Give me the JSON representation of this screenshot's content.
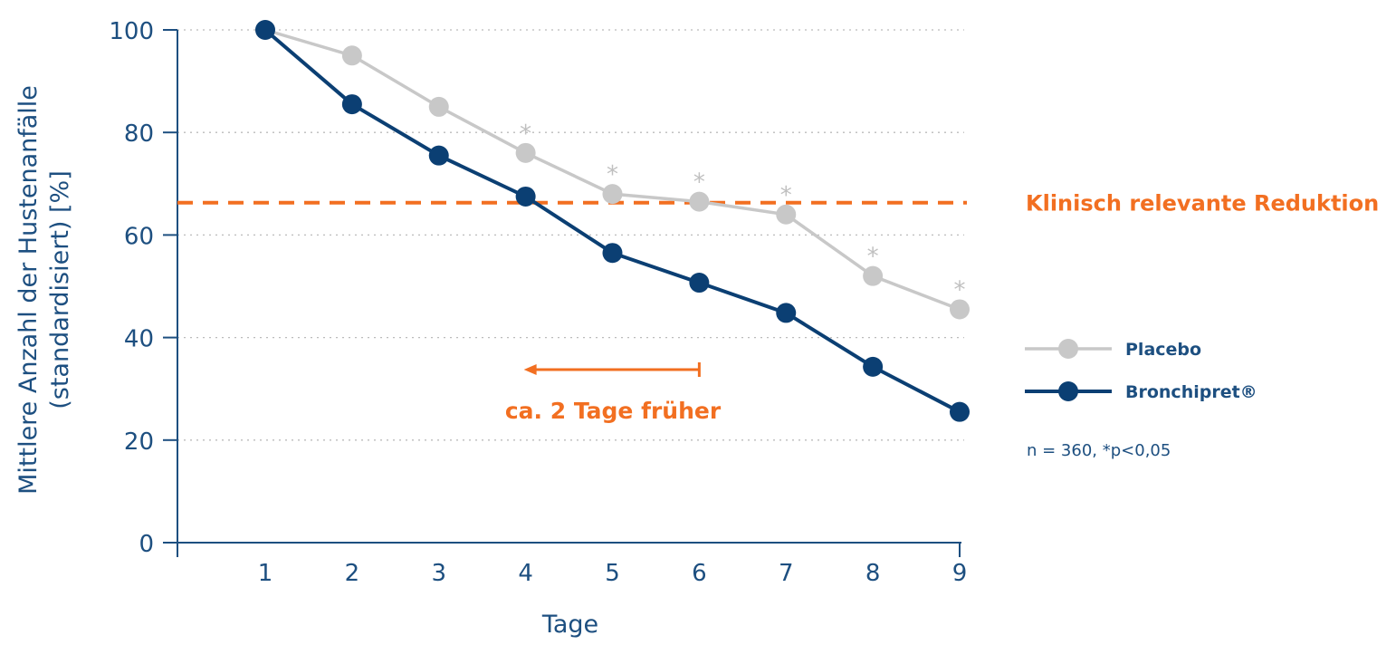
{
  "chart_data": {
    "type": "line",
    "title": "",
    "xlabel": "Tage",
    "ylabel_lines": [
      "Mittlere Anzahl der Hustenanfälle",
      "(standardisiert) [%]"
    ],
    "x": [
      1,
      2,
      3,
      4,
      5,
      6,
      7,
      8,
      9
    ],
    "x_tick_labels": [
      "1",
      "2",
      "3",
      "4",
      "5",
      "6",
      "7",
      "8",
      "9"
    ],
    "y_ticks": [
      0,
      20,
      40,
      60,
      80,
      100
    ],
    "y_tick_labels": [
      "0",
      "20",
      "40",
      "60",
      "80",
      "100"
    ],
    "ylim": [
      0,
      100
    ],
    "xlim": [
      0,
      9
    ],
    "grid": "horizontal dotted",
    "series": [
      {
        "name": "Placebo",
        "color": "#c8c8c8",
        "values": [
          100,
          95,
          85,
          76,
          68,
          66.5,
          64,
          52,
          45.5
        ],
        "significance_marks": [
          false,
          false,
          false,
          true,
          true,
          true,
          true,
          true,
          true
        ]
      },
      {
        "name": "Bronchipret®",
        "color": "#0b3f73",
        "values": [
          100,
          85.5,
          75.5,
          67.5,
          56.5,
          50.7,
          44.8,
          34.3,
          25.5
        ]
      }
    ],
    "significance_mark": "*",
    "reference_line": {
      "label": "Klinisch relevante Reduktion",
      "value": 66.3,
      "color": "#f26f21"
    },
    "annotation": {
      "label": "ca. 2 Tage früher",
      "from_x": 6,
      "to_x": 4,
      "y": 34
    },
    "legend": {
      "placement": "right",
      "items": [
        "Placebo",
        "Bronchipret®"
      ]
    },
    "footnote": "n = 360, *p<0,05"
  }
}
